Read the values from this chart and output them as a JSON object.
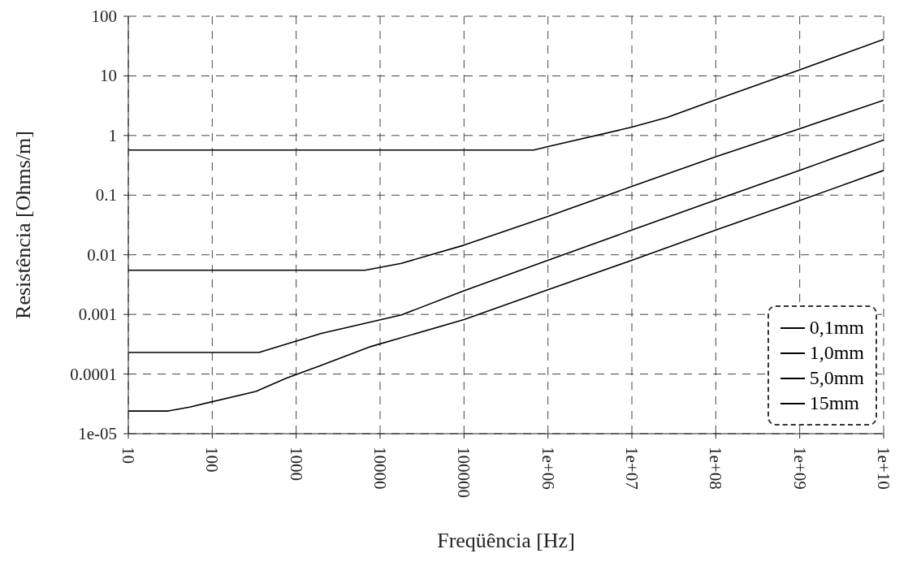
{
  "chart_data": {
    "type": "line",
    "xlabel": "Freqüência [Hz]",
    "ylabel": "Resistência [Ohms/m]",
    "log": "xy",
    "grid": true,
    "line_style": "solid",
    "marker": "none",
    "legend": "bottom right",
    "xlim": [
      10,
      10000000000
    ],
    "ylim": [
      1e-05,
      100
    ],
    "xticks": [
      10,
      100,
      1000,
      10000,
      100000,
      {
        "value": 1000000,
        "label": "1e+06"
      },
      {
        "value": 10000000,
        "label": "1e+07"
      },
      {
        "value": 100000000,
        "label": "1e+08"
      },
      {
        "value": 1000000000,
        "label": "1e+09"
      },
      {
        "value": 10000000000,
        "label": "1e+10"
      }
    ],
    "yticks": [
      {
        "value": 1e-05,
        "label": "1e-05"
      },
      0.0001,
      0.001,
      0.01,
      0.1,
      1,
      10,
      100
    ],
    "series": [
      {
        "name": "0,1mm",
        "color": "#000000",
        "x": [
          10,
          100000,
          680000,
          1000000,
          10000000,
          26000000,
          100000000,
          1000000000,
          10000000000
        ],
        "values": [
          0.57,
          0.57,
          0.57,
          0.65,
          1.38,
          2.0,
          4.0,
          12.6,
          41
        ]
      },
      {
        "name": "1,0mm",
        "color": "#000000",
        "x": [
          10,
          1000,
          6600,
          18000,
          100000,
          1000000,
          10000000,
          100000000,
          1000000000,
          10000000000
        ],
        "values": [
          0.0055,
          0.0055,
          0.0055,
          0.0072,
          0.0145,
          0.044,
          0.14,
          0.44,
          1.3,
          3.9
        ]
      },
      {
        "name": "5,0mm",
        "color": "#000000",
        "x": [
          10,
          360,
          2000,
          18000,
          100000,
          1000000,
          10000000,
          100000000,
          1000000000,
          10000000000
        ],
        "values": [
          0.00023,
          0.00023,
          0.00048,
          0.00098,
          0.0025,
          0.0081,
          0.026,
          0.083,
          0.26,
          0.84
        ]
      },
      {
        "name": "15mm",
        "color": "#000000",
        "x": [
          10,
          30,
          54,
          330,
          760,
          2000,
          7800,
          100000,
          1000000,
          10000000,
          100000000,
          1000000000,
          10000000000
        ],
        "values": [
          2.4e-05,
          2.4e-05,
          2.8e-05,
          5.1e-05,
          8.5e-05,
          0.00014,
          0.00029,
          0.00082,
          0.0026,
          0.0081,
          0.026,
          0.081,
          0.26
        ]
      }
    ]
  }
}
